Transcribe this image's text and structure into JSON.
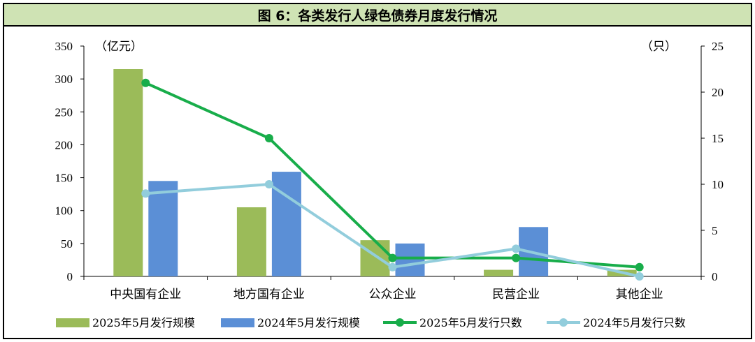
{
  "title": "图 6：各类发行人绿色债券月度发行情况",
  "left_unit": "（亿元）",
  "right_unit": "（只）",
  "colors": {
    "bar2025": "#9bbb59",
    "bar2024": "#5b8fd6",
    "line2025": "#18ad4a",
    "line2024": "#92cddc",
    "title_bg": "#cfe3b4"
  },
  "chart_data": {
    "type": "bar+line",
    "title": "图 6：各类发行人绿色债券月度发行情况",
    "categories": [
      "中央国有企业",
      "地方国有企业",
      "公众企业",
      "民营企业",
      "其他企业"
    ],
    "series": [
      {
        "name": "2025年5月发行规模",
        "type": "bar",
        "axis": "left",
        "values": [
          315,
          105,
          55,
          10,
          10
        ]
      },
      {
        "name": "2024年5月发行规模",
        "type": "bar",
        "axis": "left",
        "values": [
          145,
          159,
          50,
          75,
          0
        ]
      },
      {
        "name": "2025年5月发行只数",
        "type": "line",
        "axis": "right",
        "values": [
          21,
          15,
          2,
          2,
          1
        ]
      },
      {
        "name": "2024年5月发行只数",
        "type": "line",
        "axis": "right",
        "values": [
          9,
          10,
          1,
          3,
          0
        ]
      }
    ],
    "y_left": {
      "min": 0,
      "max": 350,
      "ticks": [
        0,
        50,
        100,
        150,
        200,
        250,
        300,
        350
      ],
      "label": "（亿元）"
    },
    "y_right": {
      "min": 0,
      "max": 25,
      "ticks": [
        0,
        5,
        10,
        15,
        20,
        25
      ],
      "label": "（只）"
    },
    "grid": false,
    "legend": "bottom"
  }
}
